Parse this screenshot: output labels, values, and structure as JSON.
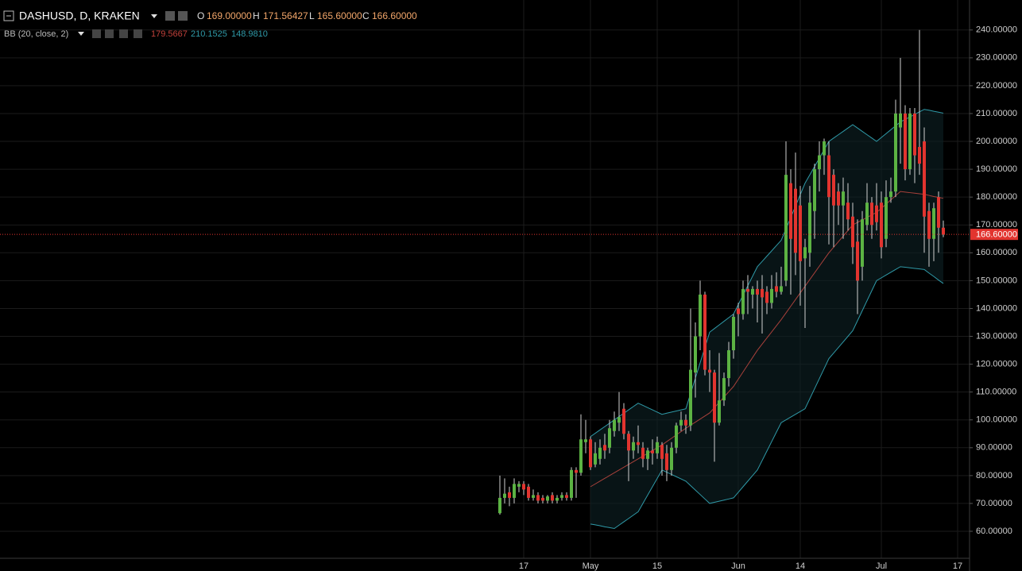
{
  "header": {
    "symbol": "DASHUSD, D, KRAKEN",
    "ohlc": [
      {
        "key": "O",
        "value": "169.00000"
      },
      {
        "key": "H",
        "value": "171.56427"
      },
      {
        "key": "L",
        "value": "165.60000"
      },
      {
        "key": "C",
        "value": "166.60000"
      }
    ]
  },
  "indicator": {
    "name": "BB (20, close, 2)",
    "values": [
      "179.5667",
      "210.1525",
      "148.9810"
    ],
    "colors": [
      "#c0403a",
      "#2f9aa8",
      "#2f9aa8"
    ]
  },
  "chart_data": {
    "type": "candlestick",
    "categories": [
      null,
      null,
      null,
      null,
      null,
      "17",
      null,
      null,
      null,
      null,
      null,
      null,
      null,
      null,
      null,
      null,
      null,
      null,
      null,
      "May",
      null,
      null,
      null,
      null,
      null,
      null,
      null,
      null,
      null,
      null,
      null,
      null,
      null,
      "15",
      null,
      null,
      null,
      null,
      null,
      null,
      null,
      null,
      null,
      null,
      null,
      null,
      null,
      null,
      null,
      null,
      "Jun",
      null,
      null,
      null,
      null,
      null,
      null,
      null,
      null,
      null,
      null,
      null,
      null,
      "14",
      null,
      null,
      null,
      null,
      null,
      null,
      null,
      null,
      null,
      null,
      null,
      null,
      null,
      null,
      null,
      null,
      "Jul",
      null,
      null,
      null,
      null,
      null,
      null,
      null,
      null,
      null,
      null,
      null,
      null,
      null,
      null,
      null,
      "17",
      null
    ],
    "open": [
      66.5,
      72,
      74,
      72,
      76,
      77,
      76,
      72,
      73,
      72,
      71,
      73,
      71,
      72,
      73,
      72,
      82,
      81,
      92,
      93,
      84,
      86,
      91,
      90,
      96,
      99,
      104,
      95,
      89,
      92,
      90,
      86,
      89,
      88,
      91,
      88,
      82,
      90,
      98,
      100,
      98,
      117,
      130,
      145,
      118,
      117,
      99,
      107,
      115,
      125,
      140,
      138,
      147,
      145,
      147,
      147,
      146,
      142,
      148,
      146,
      150,
      185,
      183,
      177,
      158,
      160,
      175,
      190,
      195,
      195,
      188,
      182,
      177,
      178,
      173,
      164,
      155,
      170,
      178,
      177,
      178,
      165,
      180,
      182,
      205,
      210,
      190,
      210,
      198,
      200,
      175,
      165,
      180,
      169,
      null,
      null,
      null,
      null
    ],
    "high": [
      80,
      79,
      76,
      79,
      78,
      78,
      77,
      75,
      74,
      73,
      73,
      74,
      73,
      74,
      74,
      83,
      83,
      102,
      100,
      94,
      92,
      93,
      95,
      100,
      103,
      110,
      106,
      96,
      94,
      98,
      92,
      90,
      93,
      94,
      92,
      91,
      92,
      99,
      103,
      102,
      140,
      135,
      150,
      146,
      125,
      118,
      124,
      117,
      128,
      138,
      142,
      150,
      152,
      148,
      150,
      152,
      148,
      152,
      153,
      155,
      200,
      190,
      196,
      184,
      165,
      184,
      192,
      200,
      201,
      200,
      190,
      185,
      187,
      185,
      178,
      172,
      175,
      185,
      180,
      185,
      182,
      186,
      187,
      215,
      230,
      213,
      212,
      212,
      240,
      205,
      178,
      178,
      182,
      171.56427,
      null,
      null,
      null,
      null
    ],
    "low": [
      66,
      70,
      69,
      70,
      74,
      73,
      71,
      71,
      70,
      70,
      70,
      70,
      70,
      71,
      71,
      71,
      72,
      80,
      88,
      82,
      83,
      84,
      86,
      88,
      94,
      96,
      93,
      78,
      86,
      88,
      83,
      82,
      84,
      86,
      80,
      78,
      80,
      88,
      96,
      95,
      96,
      108,
      125,
      116,
      110,
      85,
      98,
      105,
      112,
      122,
      130,
      136,
      138,
      140,
      135,
      131,
      138,
      140,
      144,
      145,
      148,
      145,
      152,
      141,
      133,
      155,
      165,
      182,
      188,
      163,
      162,
      170,
      165,
      168,
      156,
      138,
      150,
      168,
      165,
      168,
      158,
      162,
      178,
      180,
      192,
      186,
      188,
      185,
      188,
      160,
      155,
      157,
      160,
      165.6,
      null,
      null,
      null,
      null
    ],
    "close": [
      72,
      73.5,
      72,
      77,
      77,
      75,
      72,
      73,
      71,
      71,
      72.5,
      71,
      72,
      73,
      72,
      82,
      81,
      93,
      93,
      83,
      88,
      90,
      89,
      97,
      100,
      101,
      95,
      89,
      92,
      91,
      86,
      89,
      88,
      92,
      86,
      82,
      90,
      98,
      100,
      98,
      118,
      130,
      145,
      118,
      117,
      99,
      107,
      115,
      125,
      137,
      138,
      147,
      146,
      147,
      145,
      144,
      142,
      147,
      146,
      148,
      188,
      165,
      160,
      157,
      162,
      178,
      190,
      195,
      200,
      180,
      177,
      177,
      182,
      172,
      162,
      150,
      172,
      178,
      170,
      171,
      162,
      180,
      182,
      210,
      210,
      190,
      210,
      195,
      192,
      173,
      165,
      176,
      169,
      166.6,
      null,
      null,
      null,
      null
    ],
    "up_color": "#5cb343",
    "down_color": "#e2342f",
    "wick_color": "#d0d0d0",
    "overlays": [
      {
        "color": "#a8413b",
        "values": [
          null,
          null,
          null,
          null,
          null,
          null,
          null,
          null,
          null,
          null,
          null,
          null,
          null,
          null,
          null,
          null,
          null,
          null,
          null,
          76,
          77,
          78,
          79,
          80,
          81,
          82,
          83,
          84,
          85,
          86,
          87,
          88,
          89,
          90,
          91,
          92.2,
          93.4,
          94.6,
          95.8,
          97,
          98.1,
          99.2,
          100.3,
          101.4,
          102.5,
          104.4,
          106.3,
          108.2,
          110.1,
          112,
          114.6,
          117.2,
          119.8,
          122.4,
          125,
          127.2,
          129.4,
          131.6,
          133.8,
          136,
          138.4,
          140.8,
          143.2,
          145.6,
          148,
          150.4,
          152.8,
          155.2,
          157.6,
          160,
          162,
          164,
          166,
          168,
          170,
          170.9,
          171.8,
          172.7,
          173.6,
          174.5,
          176,
          177.5,
          179,
          180.5,
          182,
          181.8,
          181.6,
          181.4,
          181.2,
          181,
          180.6,
          180.2,
          179.9,
          179.5667,
          null,
          null,
          null,
          null
        ]
      },
      {
        "color": "#2f9aa8",
        "values": [
          null,
          null,
          null,
          null,
          null,
          null,
          null,
          null,
          null,
          null,
          null,
          null,
          null,
          null,
          null,
          null,
          null,
          null,
          null,
          94,
          95.2,
          96.4,
          97.6,
          98.8,
          100,
          101.2,
          102.4,
          103.6,
          104.8,
          106,
          105.2,
          104.4,
          103.6,
          102.8,
          102,
          102.4,
          102.8,
          103.2,
          103.6,
          104,
          109.5,
          115,
          120.5,
          126,
          131.5,
          132.8,
          134.1,
          135.4,
          136.7,
          138,
          141.4,
          144.8,
          148.2,
          151.6,
          155,
          156.9,
          158.8,
          160.7,
          162.6,
          164.5,
          168.6,
          172.7,
          176.8,
          180.9,
          185,
          188,
          191,
          194,
          197,
          200,
          201.2,
          202.4,
          203.6,
          204.8,
          206,
          204.8,
          203.6,
          202.4,
          201.2,
          200,
          201.4,
          202.8,
          204.2,
          205.6,
          207,
          207.9,
          208.8,
          209.7,
          210.6,
          211.5,
          211.2,
          210.8,
          210.5,
          210.1525,
          null,
          null,
          null,
          null
        ]
      },
      {
        "color": "#2f9aa8",
        "values": [
          null,
          null,
          null,
          null,
          null,
          null,
          null,
          null,
          null,
          null,
          null,
          null,
          null,
          null,
          null,
          null,
          null,
          null,
          null,
          62.6,
          62.3,
          62,
          61.6,
          61.3,
          61,
          62.2,
          63.4,
          64.6,
          65.8,
          67,
          70,
          73,
          76,
          79,
          82,
          81.2,
          80.4,
          79.6,
          78.8,
          78,
          76.4,
          74.8,
          73.2,
          71.6,
          70,
          70.4,
          70.8,
          71.2,
          71.6,
          72,
          74,
          76,
          78,
          80,
          82,
          85.4,
          88.8,
          92.2,
          95.6,
          99,
          100,
          101,
          102,
          103,
          104,
          107.6,
          111.2,
          114.8,
          118.4,
          122,
          124,
          126,
          128,
          130,
          132,
          135.6,
          139.2,
          142.8,
          146.4,
          150,
          151,
          152,
          153,
          154,
          155,
          154.8,
          154.6,
          154.4,
          154.2,
          154,
          152.7,
          151.5,
          150.2,
          148.981,
          null,
          null,
          null,
          null
        ]
      }
    ],
    "band_fill": "#0e2224",
    "last_price": {
      "value": 166.6,
      "label": "166.60000"
    },
    "last_price_color": "#e2342f",
    "ylim": [
      50.3,
      250.2
    ],
    "yticks": [
      {
        "value": 60,
        "label": "60.00000"
      },
      {
        "value": 70,
        "label": "70.00000"
      },
      {
        "value": 80,
        "label": "80.00000"
      },
      {
        "value": 90,
        "label": "90.00000"
      },
      {
        "value": 100,
        "label": "100.00000"
      },
      {
        "value": 110,
        "label": "110.00000"
      },
      {
        "value": 120,
        "label": "120.00000"
      },
      {
        "value": 130,
        "label": "130.00000"
      },
      {
        "value": 140,
        "label": "140.00000"
      },
      {
        "value": 150,
        "label": "150.00000"
      },
      {
        "value": 160,
        "label": "160.00000"
      },
      {
        "value": 170,
        "label": "170.00000"
      },
      {
        "value": 180,
        "label": "180.00000"
      },
      {
        "value": 190,
        "label": "190.00000"
      },
      {
        "value": 200,
        "label": "200.00000"
      },
      {
        "value": 210,
        "label": "210.00000"
      },
      {
        "value": 220,
        "label": "220.00000"
      },
      {
        "value": 230,
        "label": "230.00000"
      },
      {
        "value": 240,
        "label": "240.00000"
      }
    ],
    "grid": true
  }
}
